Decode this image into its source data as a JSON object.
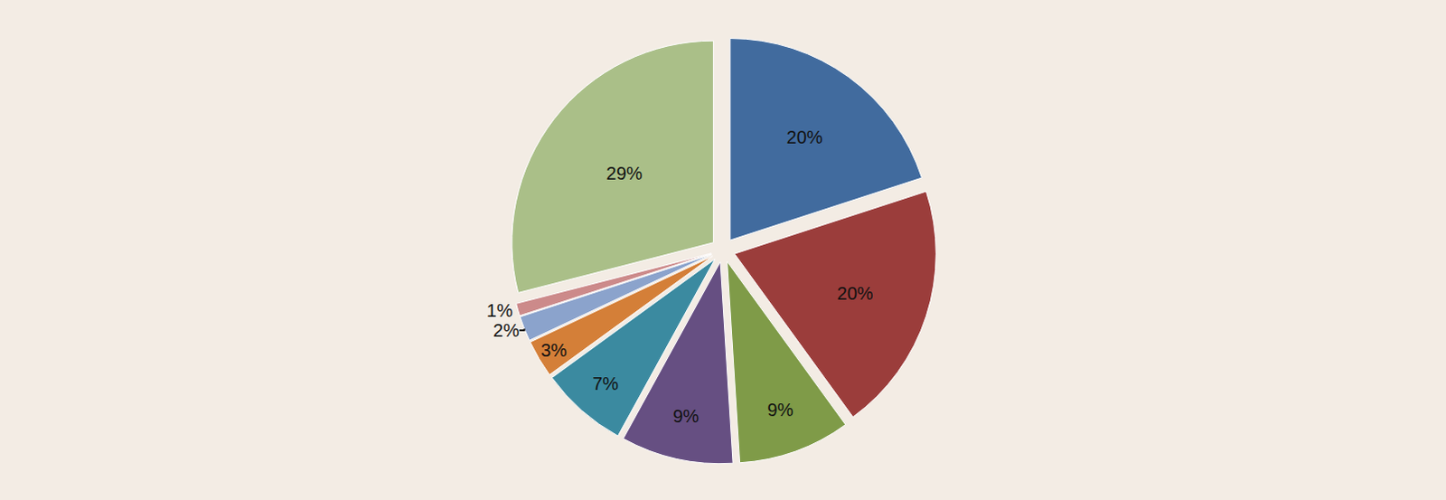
{
  "chart_data": {
    "type": "pie",
    "values": [
      20,
      20,
      9,
      9,
      7,
      3,
      2,
      1,
      29
    ],
    "value_labels": [
      "20%",
      "20%",
      "9%",
      "9%",
      "7%",
      "3%",
      "2%",
      "1%",
      "29%"
    ],
    "colors": [
      "#416b9e",
      "#9b3d3b",
      "#7f9b48",
      "#664f82",
      "#3b8aa0",
      "#d47f38",
      "#8ba3cc",
      "#cc8a8a",
      "#aabf88"
    ],
    "data_labels": true
  }
}
